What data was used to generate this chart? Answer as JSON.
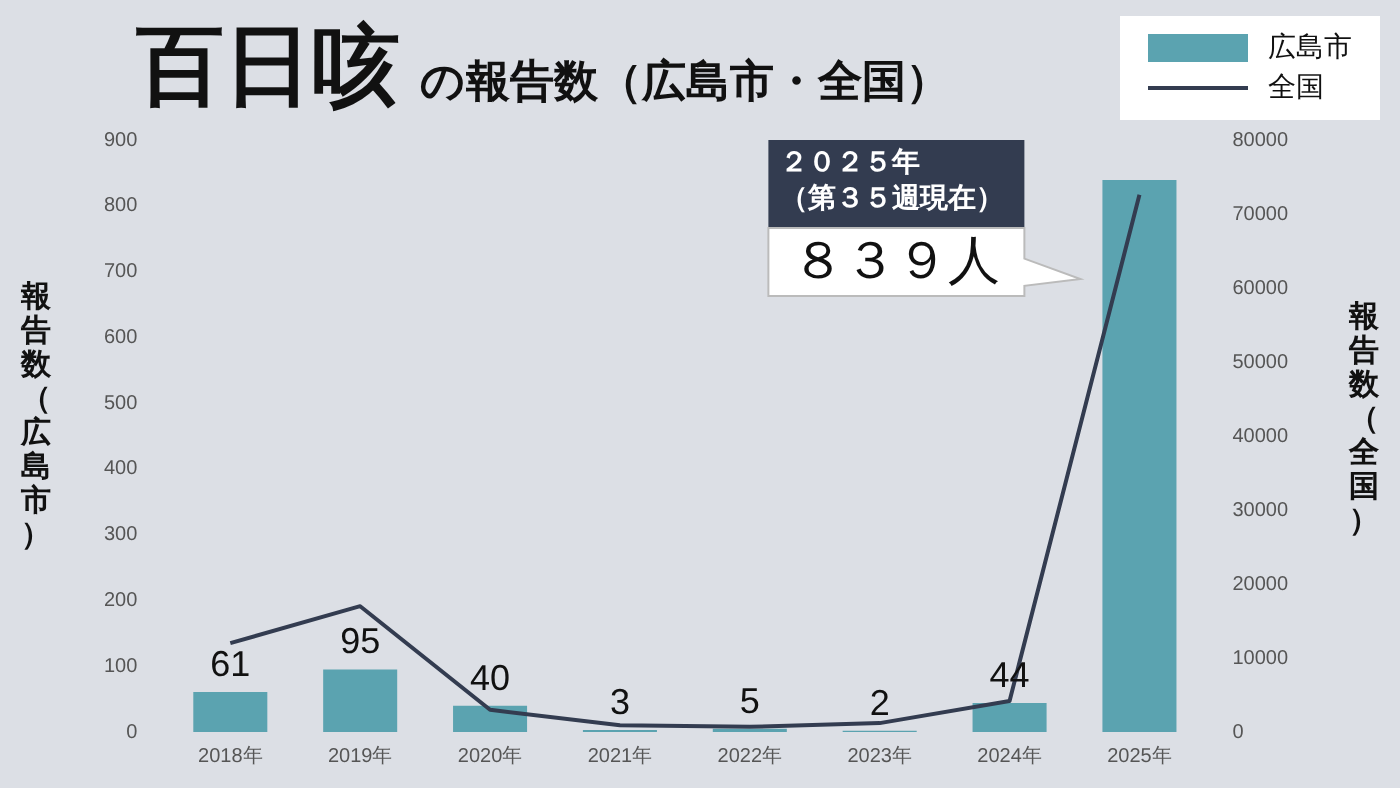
{
  "chart_data": {
    "type": "bar",
    "title": "百日咳",
    "subtitle": "の報告数（広島市・全国）",
    "ylabel": "報告数（広島市）",
    "y2label": "報告数（全国）",
    "categories": [
      "2018年",
      "2019年",
      "2020年",
      "2021年",
      "2022年",
      "2023年",
      "2024年",
      "2025年"
    ],
    "series": [
      {
        "name": "広島市",
        "color": "#5ba3b0",
        "values": [
          61,
          95,
          40,
          3,
          5,
          2,
          44,
          839
        ],
        "value_labels": [
          "61",
          "95",
          "40",
          "3",
          "5",
          "2",
          "44",
          null
        ]
      },
      {
        "name": "全国",
        "type": "line",
        "axis": "y2",
        "color": "#333c50",
        "values": [
          12000,
          17000,
          3000,
          900,
          700,
          1200,
          4200,
          72600
        ]
      }
    ],
    "ylim": [
      0,
      900
    ],
    "yticks": [
      0,
      100,
      200,
      300,
      400,
      500,
      600,
      700,
      800,
      900
    ],
    "y2lim": [
      0,
      80000
    ],
    "y2ticks": [
      0,
      10000,
      20000,
      30000,
      40000,
      50000,
      60000,
      70000,
      80000
    ],
    "annotations": [
      "２０２５年",
      "（第３５週現在）",
      "８３９人"
    ],
    "grid": false,
    "legend": "top right",
    "marker": "none",
    "line_style": "solid"
  }
}
